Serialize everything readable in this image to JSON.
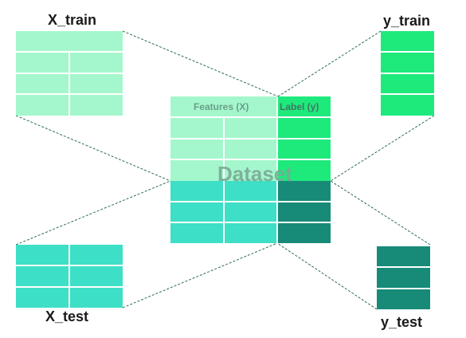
{
  "labels": {
    "x_train": "X_train",
    "y_train": "y_train",
    "x_test": "X_test",
    "y_test": "y_test",
    "dataset": "Dataset",
    "features_header": "Features (X)",
    "label_header": "Label (y)"
  },
  "colors": {
    "train_features": "#a4f7cc",
    "train_labels": "#1eea7c",
    "test_features": "#3ddfc6",
    "test_labels": "#178a78",
    "connector": "#2f6b5a",
    "cell_border": "#ffffff"
  }
}
